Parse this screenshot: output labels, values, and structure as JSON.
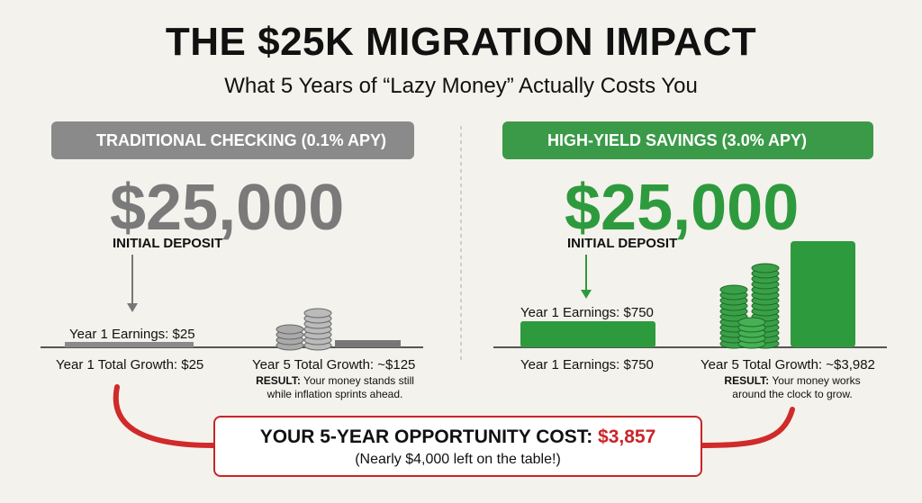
{
  "header": {
    "title": "THE $25K MIGRATION IMPACT",
    "subtitle": "What 5 Years of “Lazy Money” Actually Costs You"
  },
  "left": {
    "label": "TRADITIONAL CHECKING (0.1% APY)",
    "amount": "$25,000",
    "amount_caption": "INITIAL DEPOSIT",
    "bar_label": "Year 1 Earnings: $25",
    "year1": "Year 1 Total Growth: $25",
    "year5": "Year 5 Total Growth: ~$125",
    "result_label": "RESULT:",
    "result_text": "Your money stands still while inflation sprints ahead."
  },
  "right": {
    "label": "HIGH-YIELD SAVINGS (3.0% APY)",
    "amount": "$25,000",
    "amount_caption": "INITIAL DEPOSIT",
    "bar_label": "Year 1 Earnings: $750",
    "year1": "Year 1 Earnings: $750",
    "year5": "Year 5 Total Growth: ~$3,982",
    "result_label": "RESULT:",
    "result_text": "Your money works around the clock to grow."
  },
  "callout": {
    "text": "YOUR 5-YEAR OPPORTUNITY COST:",
    "amount": "$3,857",
    "note": "(Nearly $4,000 left on the table!)"
  }
}
